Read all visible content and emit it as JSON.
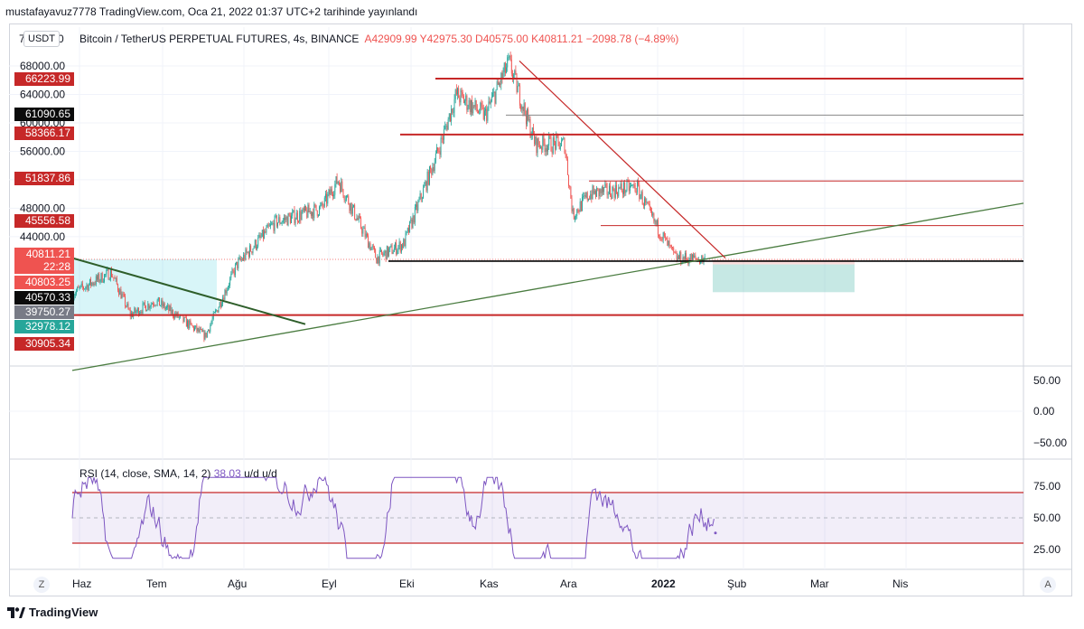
{
  "header": {
    "text": "mustafayavuz7778 TradingView.com, Oca 21, 2022 01:37 UTC+2 tarihinde yayınlandı"
  },
  "symbol_bar": {
    "title": "Bitcoin / TetherUS PERPETUAL FUTURES, 4s, BINANCE",
    "open": "A42909.99",
    "high": "Y42975.30",
    "low": "D40575.00",
    "close": "K40811.21",
    "change": "−2098.78 (−4.89%)"
  },
  "currency_badge": "USDT",
  "top_axis_stub": "7",
  "top_axis_stub_tail": "0",
  "price_labels": [
    {
      "text": "66223.99",
      "bg": "#c62828"
    },
    {
      "text": "61090.65",
      "bg": "#0b0b0b"
    },
    {
      "text": "58366.17",
      "bg": "#c62828"
    },
    {
      "text": "51837.86",
      "bg": "#c62828"
    },
    {
      "text": "45556.58",
      "bg": "#c62828"
    },
    {
      "text": "40811.21",
      "bg": "#ef5350"
    },
    {
      "text": "22:28",
      "bg": "#ef5350"
    },
    {
      "text": "40803.25",
      "bg": "#ef5350"
    },
    {
      "text": "40570.33",
      "bg": "#0b0b0b"
    },
    {
      "text": "39750.27",
      "bg": "#787b86"
    },
    {
      "text": "32978.12",
      "bg": "#26a69a"
    },
    {
      "text": "30905.34",
      "bg": "#c62828"
    }
  ],
  "panes": {
    "blank_axis": [
      "50.00",
      "0.00",
      "−50.00"
    ],
    "rsi_axis": [
      "75.00",
      "50.00",
      "25.00"
    ]
  },
  "rsi_legend": {
    "label": "RSI (14, close, SMA, 14, 2)",
    "value": "38.03",
    "tail": "u/d  u/d"
  },
  "time_axis": {
    "corner_left": "Z",
    "corner_right": "A"
  },
  "footer": {
    "brand": "TradingView",
    "logo": "tradingview-logo-icon"
  },
  "colors": {
    "up": "#26a69a",
    "down": "#ef5350",
    "rsi": "#7e57c2",
    "level": "#c62828",
    "trend": "#4a7c40"
  },
  "chart_data": [
    {
      "type": "candlestick",
      "title": "Bitcoin / TetherUS PERPETUAL FUTURES, 4s, BINANCE",
      "x_ticks": [
        "Haz",
        "Tem",
        "Ağu",
        "Eyl",
        "Eki",
        "Kas",
        "Ara",
        "2022",
        "Şub",
        "Mar",
        "Nis"
      ],
      "y_ticks": [
        "68000.00",
        "64000.00",
        "60000.00",
        "56000.00",
        "52000.00",
        "48000.00",
        "44000.00"
      ],
      "ylim": [
        28000,
        70000
      ],
      "series": [
        {
          "name": "close_path",
          "x": [
            "Jun 1",
            "Jun 15",
            "Jun 22",
            "Jul 1",
            "Jul 20",
            "Aug 1",
            "Aug 15",
            "Sep 1",
            "Sep 7",
            "Sep 21",
            "Oct 1",
            "Oct 15",
            "Oct 21",
            "Nov 1",
            "Nov 10",
            "Nov 20",
            "Dec 1",
            "Dec 4",
            "Dec 10",
            "Dec 27",
            "Jan 1",
            "Jan 10",
            "Jan 21"
          ],
          "values": [
            36000,
            39000,
            33000,
            35000,
            30000,
            40000,
            46000,
            48000,
            52000,
            41000,
            43000,
            57000,
            64000,
            61000,
            68500,
            57000,
            57000,
            47000,
            50000,
            51000,
            47000,
            41000,
            40811
          ]
        }
      ],
      "levels": [
        66223.99,
        61090.65,
        58366.17,
        51837.86,
        45556.58,
        40811.21,
        40570.33,
        32978.12,
        30905.34
      ]
    },
    {
      "type": "line",
      "title": "RSI (14, close, SMA, 14, 2)",
      "y_ticks": [
        "75.00",
        "50.00",
        "25.00"
      ],
      "ylim": [
        15,
        90
      ],
      "bands": [
        30,
        70
      ],
      "midline": 50,
      "last_value": 38.03
    }
  ]
}
